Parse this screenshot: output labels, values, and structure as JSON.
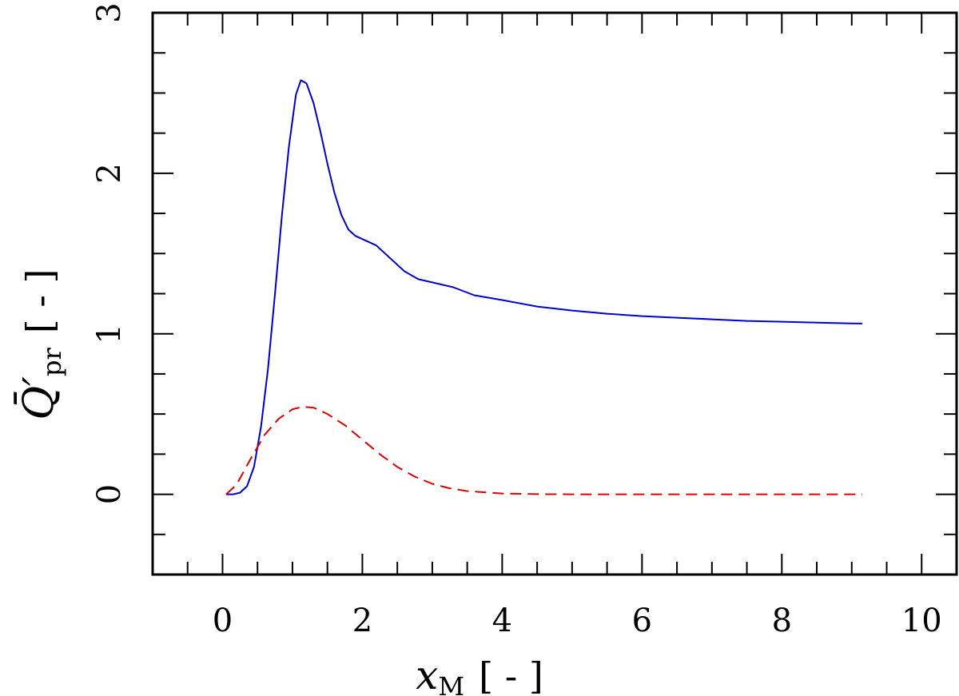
{
  "chart_data": {
    "type": "line",
    "xlabel": {
      "main": "x",
      "sub": "M",
      "unit": "[ - ]"
    },
    "ylabel": {
      "main": "Q̄′",
      "sub": "pr",
      "unit": "[ - ]"
    },
    "xlim": [
      -1,
      10.5
    ],
    "ylim": [
      -0.5,
      3
    ],
    "x_ticks": [
      0,
      2,
      4,
      6,
      8,
      10
    ],
    "x_tick_labels": [
      "0",
      "2",
      "4",
      "6",
      "8",
      "10"
    ],
    "y_ticks": [
      0,
      1,
      2,
      3
    ],
    "y_tick_labels": [
      "0",
      "1",
      "2",
      "3"
    ],
    "x_minor_step": 0.5,
    "y_minor_step": 0.25,
    "grid": false,
    "legend": "none",
    "series": [
      {
        "style": "solid",
        "color": "#0000cc",
        "points": [
          [
            0.05,
            0.0
          ],
          [
            0.15,
            0.0
          ],
          [
            0.25,
            0.01
          ],
          [
            0.35,
            0.05
          ],
          [
            0.45,
            0.17
          ],
          [
            0.55,
            0.42
          ],
          [
            0.65,
            0.78
          ],
          [
            0.75,
            1.25
          ],
          [
            0.85,
            1.74
          ],
          [
            0.95,
            2.17
          ],
          [
            1.05,
            2.49
          ],
          [
            1.12,
            2.58
          ],
          [
            1.2,
            2.56
          ],
          [
            1.3,
            2.44
          ],
          [
            1.4,
            2.26
          ],
          [
            1.5,
            2.06
          ],
          [
            1.6,
            1.88
          ],
          [
            1.7,
            1.74
          ],
          [
            1.8,
            1.65
          ],
          [
            1.9,
            1.61
          ],
          [
            2.0,
            1.59
          ],
          [
            2.2,
            1.55
          ],
          [
            2.4,
            1.47
          ],
          [
            2.6,
            1.39
          ],
          [
            2.8,
            1.34
          ],
          [
            3.0,
            1.32
          ],
          [
            3.3,
            1.29
          ],
          [
            3.6,
            1.24
          ],
          [
            4.0,
            1.21
          ],
          [
            4.5,
            1.17
          ],
          [
            5.0,
            1.145
          ],
          [
            5.5,
            1.125
          ],
          [
            6.0,
            1.11
          ],
          [
            6.5,
            1.1
          ],
          [
            7.0,
            1.09
          ],
          [
            7.5,
            1.08
          ],
          [
            8.0,
            1.075
          ],
          [
            8.5,
            1.07
          ],
          [
            9.0,
            1.065
          ],
          [
            9.15,
            1.064
          ]
        ]
      },
      {
        "style": "dashed",
        "color": "#dd0000",
        "points": [
          [
            0.05,
            0.0
          ],
          [
            0.2,
            0.06
          ],
          [
            0.4,
            0.22
          ],
          [
            0.6,
            0.37
          ],
          [
            0.8,
            0.47
          ],
          [
            1.0,
            0.53
          ],
          [
            1.15,
            0.545
          ],
          [
            1.3,
            0.54
          ],
          [
            1.5,
            0.5
          ],
          [
            1.75,
            0.43
          ],
          [
            2.0,
            0.34
          ],
          [
            2.25,
            0.25
          ],
          [
            2.5,
            0.17
          ],
          [
            2.75,
            0.11
          ],
          [
            3.0,
            0.065
          ],
          [
            3.25,
            0.037
          ],
          [
            3.5,
            0.02
          ],
          [
            4.0,
            0.005
          ],
          [
            4.5,
            0.001
          ],
          [
            5.0,
            0.0
          ],
          [
            6.0,
            0.0
          ],
          [
            7.0,
            0.0
          ],
          [
            8.0,
            0.0
          ],
          [
            9.15,
            0.0
          ]
        ]
      }
    ]
  }
}
